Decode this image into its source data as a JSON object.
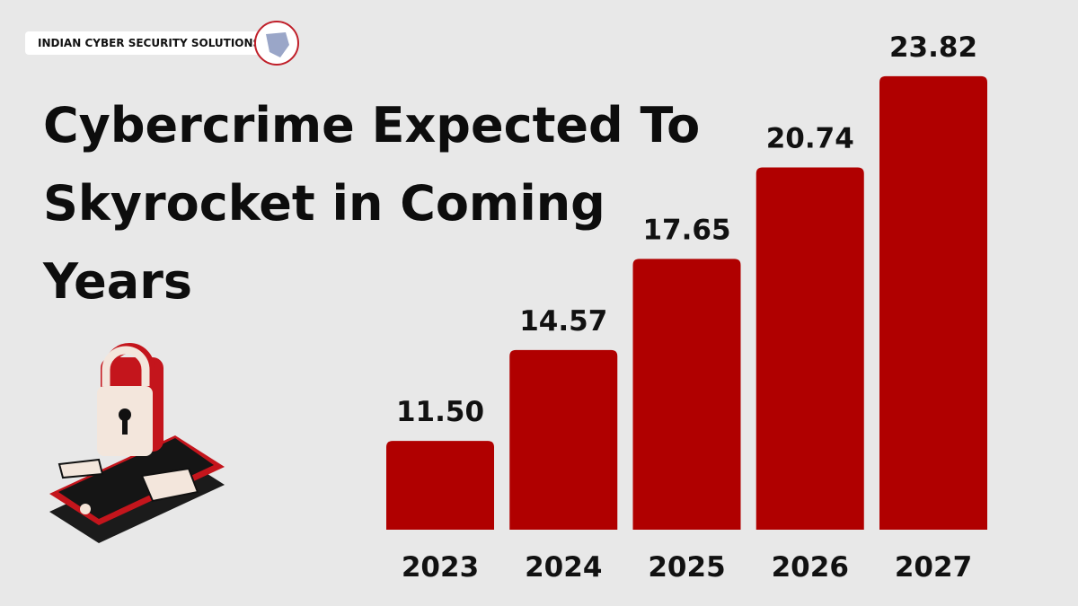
{
  "brand": "INDIAN CYBER SECURITY SOLUTIONS",
  "chart_data": {
    "type": "bar",
    "title": "Cybercrime Expected To Skyrocket in Coming Years",
    "categories": [
      "2023",
      "2024",
      "2025",
      "2026",
      "2027"
    ],
    "values": [
      11.5,
      14.57,
      17.65,
      20.74,
      23.82
    ],
    "value_labels": [
      "11.50",
      "14.57",
      "17.65",
      "20.74",
      "23.82"
    ],
    "color": "#b00000",
    "ylim": [
      8.5,
      25
    ]
  }
}
